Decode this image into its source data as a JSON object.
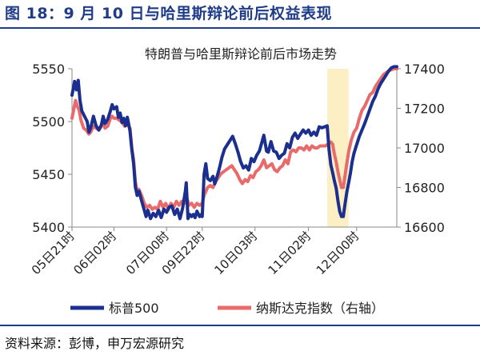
{
  "figure": {
    "label": "图 18：9 月 10 日与哈里斯辩论前后权益表现",
    "source": "资料来源：彭博，申万宏源研究"
  },
  "colors": {
    "brand": "#1f3c88",
    "series_sp500": "#1b2f8f",
    "series_nasdaq": "#e96a6a",
    "highlight": "#fdefc4"
  },
  "chart_data": {
    "type": "line",
    "title": "特朗普与哈里斯辩论前后市场走势",
    "xlabel": "",
    "ylabel": "",
    "x_ticks": [
      "05日21时",
      "06日02时",
      "07日00时",
      "09日22时",
      "10日03时",
      "11日02时",
      "12日00时"
    ],
    "x_tick_positions": [
      0,
      47,
      106,
      146,
      205,
      265,
      319
    ],
    "x_range": [
      0,
      364
    ],
    "highlight_range": [
      286,
      310
    ],
    "y_left": {
      "ticks": [
        5400,
        5450,
        5500,
        5550
      ],
      "ylim": [
        5400,
        5550
      ]
    },
    "y_right": {
      "ticks": [
        16600,
        16800,
        17000,
        17200,
        17400
      ],
      "ylim": [
        16600,
        17400
      ],
      "label_suffix": ""
    },
    "grid": false,
    "legend_position": "bottom",
    "series": [
      {
        "name": "标普500",
        "axis": "left",
        "points": [
          [
            0,
            5525
          ],
          [
            3,
            5538
          ],
          [
            5,
            5530
          ],
          [
            7,
            5539
          ],
          [
            9,
            5520
          ],
          [
            11,
            5510
          ],
          [
            14,
            5505
          ],
          [
            17,
            5500
          ],
          [
            19,
            5490
          ],
          [
            21,
            5494
          ],
          [
            24,
            5505
          ],
          [
            27,
            5496
          ],
          [
            30,
            5492
          ],
          [
            33,
            5497
          ],
          [
            35,
            5505
          ],
          [
            37,
            5498
          ],
          [
            40,
            5502
          ],
          [
            43,
            5510
          ],
          [
            45,
            5516
          ],
          [
            47,
            5512
          ],
          [
            50,
            5514
          ],
          [
            52,
            5504
          ],
          [
            54,
            5508
          ],
          [
            56,
            5499
          ],
          [
            58,
            5503
          ],
          [
            60,
            5496
          ],
          [
            62,
            5504
          ],
          [
            65,
            5491
          ],
          [
            67,
            5474
          ],
          [
            69,
            5460
          ],
          [
            71,
            5438
          ],
          [
            73,
            5430
          ],
          [
            75,
            5434
          ],
          [
            78,
            5425
          ],
          [
            80,
            5419
          ],
          [
            83,
            5410
          ],
          [
            85,
            5416
          ],
          [
            88,
            5408
          ],
          [
            91,
            5413
          ],
          [
            94,
            5410
          ],
          [
            97,
            5416
          ],
          [
            100,
            5409
          ],
          [
            103,
            5417
          ],
          [
            106,
            5414
          ],
          [
            109,
            5419
          ],
          [
            112,
            5420
          ],
          [
            115,
            5412
          ],
          [
            118,
            5417
          ],
          [
            121,
            5408
          ],
          [
            124,
            5418
          ],
          [
            127,
            5434
          ],
          [
            128,
            5442
          ],
          [
            130,
            5408
          ],
          [
            132,
            5412
          ],
          [
            134,
            5410
          ],
          [
            136,
            5412
          ],
          [
            138,
            5409
          ],
          [
            140,
            5415
          ],
          [
            143,
            5410
          ],
          [
            145,
            5412
          ],
          [
            146,
            5410
          ],
          [
            148,
            5450
          ],
          [
            150,
            5460
          ],
          [
            152,
            5446
          ],
          [
            155,
            5444
          ],
          [
            158,
            5448
          ],
          [
            160,
            5441
          ],
          [
            163,
            5449
          ],
          [
            165,
            5455
          ],
          [
            168,
            5466
          ],
          [
            171,
            5474
          ],
          [
            174,
            5478
          ],
          [
            177,
            5482
          ],
          [
            180,
            5486
          ],
          [
            183,
            5479
          ],
          [
            186,
            5471
          ],
          [
            189,
            5462
          ],
          [
            192,
            5456
          ],
          [
            195,
            5458
          ],
          [
            198,
            5454
          ],
          [
            201,
            5465
          ],
          [
            204,
            5462
          ],
          [
            207,
            5468
          ],
          [
            210,
            5472
          ],
          [
            213,
            5481
          ],
          [
            215,
            5487
          ],
          [
            218,
            5472
          ],
          [
            220,
            5471
          ],
          [
            223,
            5481
          ],
          [
            226,
            5472
          ],
          [
            229,
            5471
          ],
          [
            232,
            5465
          ],
          [
            235,
            5468
          ],
          [
            238,
            5470
          ],
          [
            241,
            5479
          ],
          [
            244,
            5475
          ],
          [
            247,
            5485
          ],
          [
            250,
            5489
          ],
          [
            253,
            5484
          ],
          [
            256,
            5488
          ],
          [
            259,
            5492
          ],
          [
            262,
            5489
          ],
          [
            265,
            5492
          ],
          [
            268,
            5487
          ],
          [
            271,
            5490
          ],
          [
            274,
            5487
          ],
          [
            277,
            5495
          ],
          [
            280,
            5494
          ],
          [
            283,
            5495
          ],
          [
            286,
            5496
          ],
          [
            288,
            5474
          ],
          [
            290,
            5459
          ],
          [
            292,
            5452
          ],
          [
            294,
            5444
          ],
          [
            296,
            5437
          ],
          [
            298,
            5425
          ],
          [
            300,
            5415
          ],
          [
            302,
            5410
          ],
          [
            304,
            5410
          ],
          [
            306,
            5422
          ],
          [
            308,
            5433
          ],
          [
            310,
            5442
          ],
          [
            312,
            5451
          ],
          [
            314,
            5462
          ],
          [
            316,
            5470
          ],
          [
            319,
            5478
          ],
          [
            322,
            5486
          ],
          [
            325,
            5492
          ],
          [
            328,
            5498
          ],
          [
            331,
            5505
          ],
          [
            334,
            5512
          ],
          [
            337,
            5519
          ],
          [
            340,
            5524
          ],
          [
            343,
            5531
          ],
          [
            346,
            5536
          ],
          [
            349,
            5540
          ],
          [
            352,
            5544
          ],
          [
            355,
            5548
          ],
          [
            358,
            5551
          ],
          [
            361,
            5552
          ],
          [
            364,
            5552
          ]
        ]
      },
      {
        "name": "纳斯达克指数（右轴）",
        "axis": "right",
        "points": [
          [
            0,
            17150
          ],
          [
            2,
            17195
          ],
          [
            4,
            17240
          ],
          [
            6,
            17210
          ],
          [
            8,
            17190
          ],
          [
            10,
            17140
          ],
          [
            13,
            17100
          ],
          [
            16,
            17090
          ],
          [
            19,
            17070
          ],
          [
            21,
            17080
          ],
          [
            24,
            17110
          ],
          [
            27,
            17100
          ],
          [
            30,
            17090
          ],
          [
            33,
            17110
          ],
          [
            35,
            17120
          ],
          [
            37,
            17100
          ],
          [
            40,
            17110
          ],
          [
            43,
            17150
          ],
          [
            45,
            17160
          ],
          [
            47,
            17150
          ],
          [
            50,
            17150
          ],
          [
            53,
            17140
          ],
          [
            56,
            17130
          ],
          [
            59,
            17110
          ],
          [
            62,
            17120
          ],
          [
            65,
            17100
          ],
          [
            67,
            17000
          ],
          [
            69,
            16940
          ],
          [
            71,
            16830
          ],
          [
            73,
            16780
          ],
          [
            75,
            16790
          ],
          [
            78,
            16760
          ],
          [
            81,
            16720
          ],
          [
            84,
            16700
          ],
          [
            87,
            16710
          ],
          [
            90,
            16690
          ],
          [
            93,
            16700
          ],
          [
            96,
            16690
          ],
          [
            99,
            16730
          ],
          [
            102,
            16700
          ],
          [
            105,
            16720
          ],
          [
            108,
            16690
          ],
          [
            111,
            16720
          ],
          [
            114,
            16700
          ],
          [
            117,
            16730
          ],
          [
            120,
            16710
          ],
          [
            123,
            16730
          ],
          [
            126,
            16720
          ],
          [
            128,
            16760
          ],
          [
            131,
            16710
          ],
          [
            134,
            16720
          ],
          [
            137,
            16700
          ],
          [
            140,
            16720
          ],
          [
            143,
            16710
          ],
          [
            146,
            16720
          ],
          [
            148,
            16760
          ],
          [
            150,
            16780
          ],
          [
            152,
            16800
          ],
          [
            155,
            16810
          ],
          [
            158,
            16800
          ],
          [
            161,
            16830
          ],
          [
            164,
            16850
          ],
          [
            167,
            16870
          ],
          [
            170,
            16880
          ],
          [
            173,
            16890
          ],
          [
            176,
            16900
          ],
          [
            179,
            16910
          ],
          [
            182,
            16890
          ],
          [
            185,
            16870
          ],
          [
            188,
            16840
          ],
          [
            191,
            16820
          ],
          [
            194,
            16840
          ],
          [
            197,
            16830
          ],
          [
            200,
            16860
          ],
          [
            203,
            16850
          ],
          [
            206,
            16880
          ],
          [
            209,
            16890
          ],
          [
            212,
            16910
          ],
          [
            215,
            16940
          ],
          [
            218,
            16900
          ],
          [
            221,
            16910
          ],
          [
            224,
            16920
          ],
          [
            227,
            16890
          ],
          [
            230,
            16880
          ],
          [
            233,
            16900
          ],
          [
            236,
            16910
          ],
          [
            239,
            16940
          ],
          [
            242,
            16920
          ],
          [
            245,
            16980
          ],
          [
            248,
            16990
          ],
          [
            251,
            16980
          ],
          [
            254,
            17000
          ],
          [
            257,
            17000
          ],
          [
            260,
            16990
          ],
          [
            263,
            17010
          ],
          [
            266,
            16990
          ],
          [
            269,
            17010
          ],
          [
            272,
            17000
          ],
          [
            275,
            17000
          ],
          [
            278,
            17010
          ],
          [
            281,
            17010
          ],
          [
            284,
            17010
          ],
          [
            287,
            17020
          ],
          [
            290,
            17030
          ],
          [
            292,
            17020
          ],
          [
            294,
            16970
          ],
          [
            296,
            16930
          ],
          [
            298,
            16880
          ],
          [
            300,
            16840
          ],
          [
            302,
            16800
          ],
          [
            304,
            16800
          ],
          [
            306,
            16860
          ],
          [
            308,
            16920
          ],
          [
            310,
            16980
          ],
          [
            313,
            17040
          ],
          [
            316,
            17080
          ],
          [
            319,
            17100
          ],
          [
            322,
            17150
          ],
          [
            325,
            17190
          ],
          [
            328,
            17210
          ],
          [
            331,
            17240
          ],
          [
            334,
            17270
          ],
          [
            337,
            17280
          ],
          [
            340,
            17310
          ],
          [
            343,
            17330
          ],
          [
            346,
            17350
          ],
          [
            349,
            17370
          ],
          [
            352,
            17380
          ],
          [
            355,
            17390
          ],
          [
            358,
            17395
          ],
          [
            361,
            17400
          ],
          [
            364,
            17400
          ]
        ]
      }
    ]
  }
}
